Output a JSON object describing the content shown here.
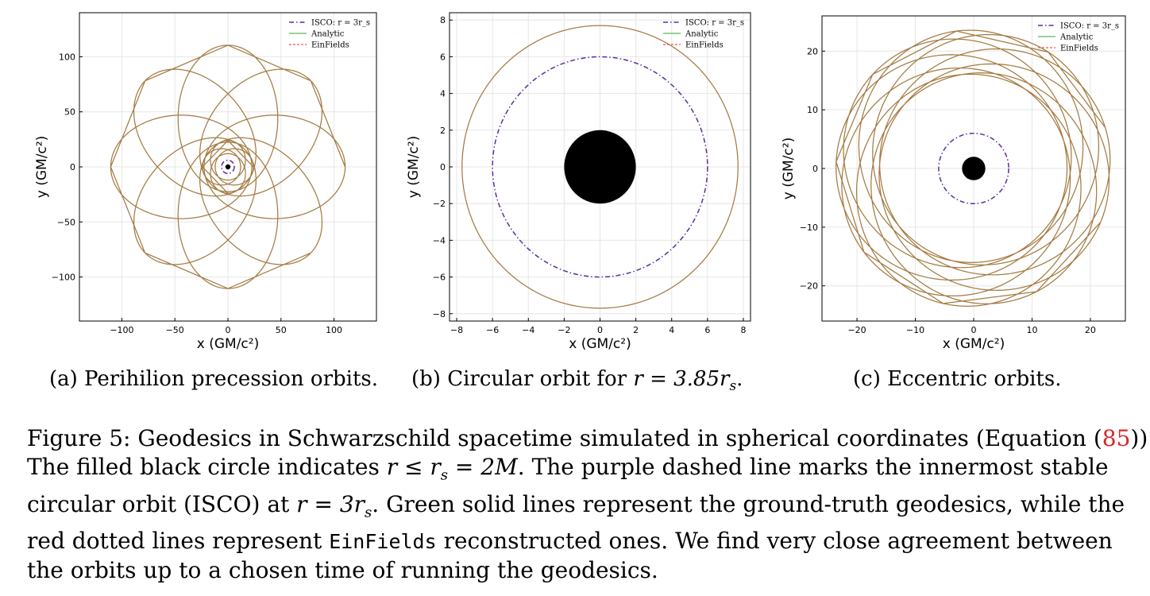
{
  "colors": {
    "orbit": "#a6793d",
    "analytic": "#5cb85c",
    "einfields": "#e05a5a",
    "isco": "#5b2d9e",
    "grid": "#e6e6e6",
    "ref": "#d62728"
  },
  "chart_data": [
    {
      "type": "line",
      "title": "",
      "xlabel": "x (GM/c²)",
      "ylabel": "y (GM/c²)",
      "xlim": [
        -140,
        140
      ],
      "ylim": [
        -140,
        140
      ],
      "xticks": [
        -100,
        -50,
        0,
        50,
        100
      ],
      "yticks": [
        -100,
        -50,
        0,
        50,
        100
      ],
      "xtick_labels": [
        "−100",
        "−50",
        "0",
        "50",
        "100"
      ],
      "ytick_labels": [
        "−100",
        "−50",
        "0",
        "50",
        "100"
      ],
      "grid": true,
      "legend": {
        "placement": "top-right",
        "entries": [
          "ISCO: r = 3r_s",
          "Analytic",
          "EinFields"
        ]
      },
      "horizon_radius": 2,
      "isco_radius": 6,
      "orbits": [
        {
          "kind": "precessing",
          "semi_major": 66.5,
          "semi_minor": 47,
          "focus_offset": 44,
          "lobes": 8,
          "start_angle": 0
        }
      ],
      "inner_orbit": {
        "kind": "precessing",
        "semi_major": 18,
        "semi_minor": 16.5,
        "focus_offset": 6,
        "lobes": 4
      },
      "series": [
        {
          "name": "ISCO: r = 3r_s",
          "style": "dash-dot"
        },
        {
          "name": "Analytic",
          "style": "solid"
        },
        {
          "name": "EinFields",
          "style": "dashed"
        }
      ]
    },
    {
      "type": "line",
      "title": "",
      "xlabel": "x (GM/c²)",
      "ylabel": "y (GM/c²)",
      "xlim": [
        -8.4,
        8.4
      ],
      "ylim": [
        -8.4,
        8.4
      ],
      "xticks": [
        -8,
        -6,
        -4,
        -2,
        0,
        2,
        4,
        6,
        8
      ],
      "yticks": [
        -8,
        -6,
        -4,
        -2,
        0,
        2,
        4,
        6,
        8
      ],
      "xtick_labels": [
        "−8",
        "−6",
        "−4",
        "−2",
        "0",
        "2",
        "4",
        "6",
        "8"
      ],
      "ytick_labels": [
        "−8",
        "−6",
        "−4",
        "−2",
        "0",
        "2",
        "4",
        "6",
        "8"
      ],
      "grid": true,
      "legend": {
        "placement": "top-right",
        "entries": [
          "ISCO: r = 3r_s",
          "Analytic",
          "EinFields"
        ]
      },
      "horizon_radius": 2,
      "isco_radius": 6,
      "orbits": [
        {
          "kind": "circle",
          "radius": 7.7
        }
      ],
      "series": [
        {
          "name": "ISCO: r = 3r_s",
          "style": "dash-dot"
        },
        {
          "name": "Analytic",
          "style": "solid"
        },
        {
          "name": "EinFields",
          "style": "dashed"
        }
      ]
    },
    {
      "type": "line",
      "title": "",
      "xlabel": "x (GM/c²)",
      "ylabel": "y (GM/c²)",
      "xlim": [
        -26,
        26
      ],
      "ylim": [
        -26,
        26
      ],
      "xticks": [
        -20,
        -10,
        0,
        10,
        20
      ],
      "yticks": [
        -20,
        -10,
        0,
        10,
        20
      ],
      "xtick_labels": [
        "−20",
        "−10",
        "0",
        "10",
        "20"
      ],
      "ytick_labels": [
        "−20",
        "−10",
        "0",
        "10",
        "20"
      ],
      "grid": true,
      "legend": {
        "placement": "top-right",
        "entries": [
          "ISCO: r = 3r_s",
          "Analytic",
          "EinFields"
        ]
      },
      "horizon_radius": 2,
      "isco_radius": 6,
      "orbits": [
        {
          "kind": "precessing",
          "semi_major": 19.8,
          "semi_minor": 19.2,
          "focus_offset": 3.8,
          "lobes": 9,
          "start_angle": 0.3
        }
      ],
      "series": [
        {
          "name": "ISCO: r = 3r_s",
          "style": "dash-dot"
        },
        {
          "name": "Analytic",
          "style": "solid"
        },
        {
          "name": "EinFields",
          "style": "dashed"
        }
      ]
    }
  ],
  "subcaptions": {
    "a": "(a) Perihilion precession orbits.",
    "b_prefix": "(b) Circular orbit for ",
    "b_math": "r = 3.85r",
    "b_sub": "s",
    "b_suffix": ".",
    "c": "(c) Eccentric orbits."
  },
  "caption": {
    "l1_a": "Figure 5: Geodesics in Schwarzschild spacetime simulated in spherical coordinates (Equation (",
    "l1_ref": "85",
    "l1_b": ")).",
    "l2_a": "The filled black circle indicates ",
    "l2_math": "r ≤ r",
    "l2_sub": "s",
    "l2_math2": " = 2M",
    "l2_b": ". The purple dashed line marks the innermost stable",
    "l3_a": "circular orbit (ISCO) at ",
    "l3_math": "r = 3r",
    "l3_sub": "s",
    "l3_b": ". Green solid lines represent the ground-truth geodesics, while the",
    "l4_a": "red dotted lines represent ",
    "l4_mono": "EinFields",
    "l4_b": " reconstructed ones. We find very close agreement between",
    "l5": "the orbits up to a chosen time of running the geodesics."
  }
}
